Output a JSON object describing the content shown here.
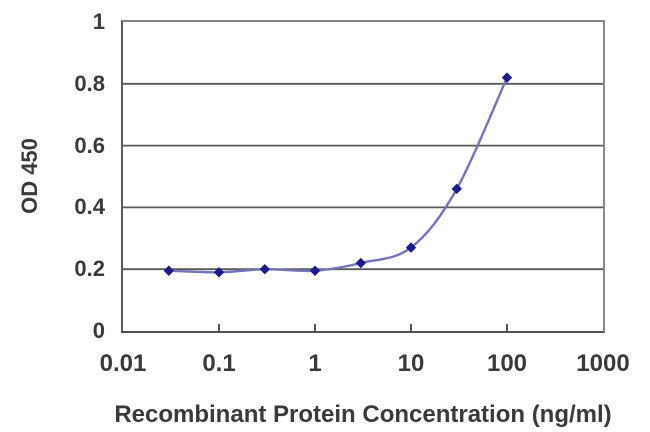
{
  "chart_data": {
    "type": "line",
    "title": "",
    "xlabel": "Recombinant Protein Concentration (ng/ml)",
    "ylabel": "OD 450",
    "x_scale": "log",
    "x": [
      0.03,
      0.1,
      0.3,
      1,
      3,
      10,
      30,
      100
    ],
    "y": [
      0.195,
      0.19,
      0.2,
      0.195,
      0.22,
      0.27,
      0.46,
      0.82
    ],
    "xlim": [
      0.01,
      1000
    ],
    "ylim": [
      0,
      1
    ],
    "x_ticks": [
      "0.01",
      "0.1",
      "1",
      "10",
      "100",
      "1000"
    ],
    "y_ticks": [
      "0",
      "0.2",
      "0.4",
      "0.6",
      "0.8",
      "1"
    ],
    "gridlines_y": [
      0.2,
      0.4,
      0.6,
      0.8
    ],
    "x_minor_tick_marks": [
      0.1,
      1,
      10,
      100
    ],
    "grid": "horizontal",
    "legend_position": "none",
    "marker_shape": "diamond",
    "colors": {
      "line": "#7474bd",
      "marker": "#1b1b8c",
      "gridline": "#595959",
      "tick_mark": "#595959",
      "plot_border": "#7c7c7c",
      "text": "#3a3a3e",
      "background": "#ffffff"
    }
  }
}
